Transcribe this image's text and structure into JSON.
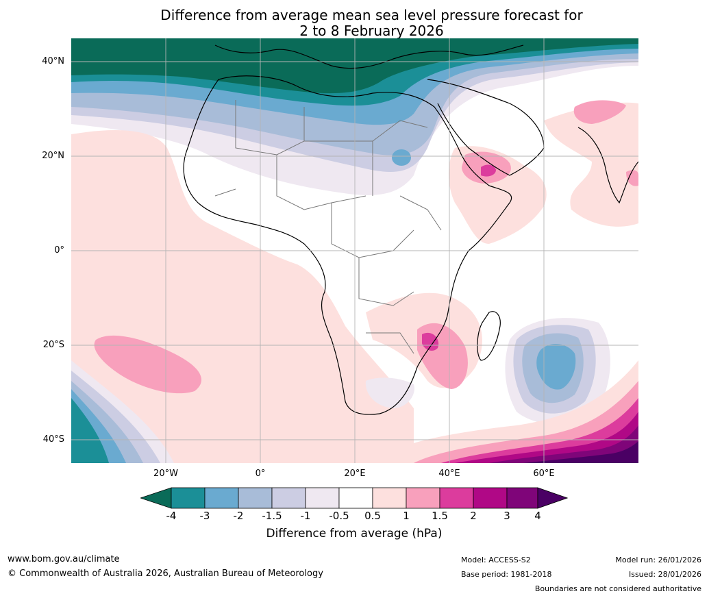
{
  "title": {
    "line1": "Difference from average mean sea level pressure forecast for",
    "line2": "2 to 8 February 2026"
  },
  "map": {
    "lat_labels": [
      "40°N",
      "20°N",
      "0°",
      "20°S",
      "40°S"
    ],
    "lon_labels": [
      "20°W",
      "0°",
      "20°E",
      "40°E",
      "60°E"
    ],
    "lat_values": [
      40,
      20,
      0,
      -20,
      -40
    ],
    "lon_values": [
      -20,
      0,
      20,
      40,
      60
    ]
  },
  "colorbar": {
    "label": "Difference from average (hPa)",
    "ticks": [
      "-4",
      "-3",
      "-2",
      "-1.5",
      "-1",
      "-0.5",
      "0.5",
      "1",
      "1.5",
      "2",
      "3",
      "4"
    ],
    "colors": {
      "below_min": "#0a6b58",
      "c1": "#1b8f97",
      "c2": "#6aaad0",
      "c3": "#a8bcd8",
      "c4": "#cccde3",
      "c5": "#efe8f1",
      "c6": "#ffffff",
      "c7": "#fde0de",
      "c8": "#f8a0bc",
      "c9": "#dc3c9d",
      "c10": "#b00886",
      "c11": "#7f0579",
      "above_max": "#4a0064"
    }
  },
  "footer": {
    "website": "www.bom.gov.au/climate",
    "copyright": "© Commonwealth of Australia 2026, Australian Bureau of Meteorology",
    "model": "Model: ACCESS-S2",
    "base_period": "Base period: 1981-2018",
    "model_run": "Model run: 26/01/2026",
    "issued": "Issued: 28/01/2026",
    "disclaimer": "Boundaries are not considered authoritative"
  }
}
